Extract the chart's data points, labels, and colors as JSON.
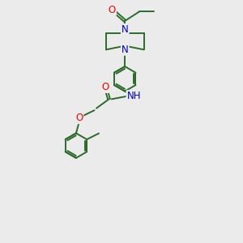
{
  "bg_color": "#ebebeb",
  "bond_color": "#2d6b2d",
  "bond_width": 1.4,
  "atom_colors": {
    "O": "#ff0000",
    "N": "#0000cc",
    "C": "#000000"
  },
  "fs": 8.5
}
